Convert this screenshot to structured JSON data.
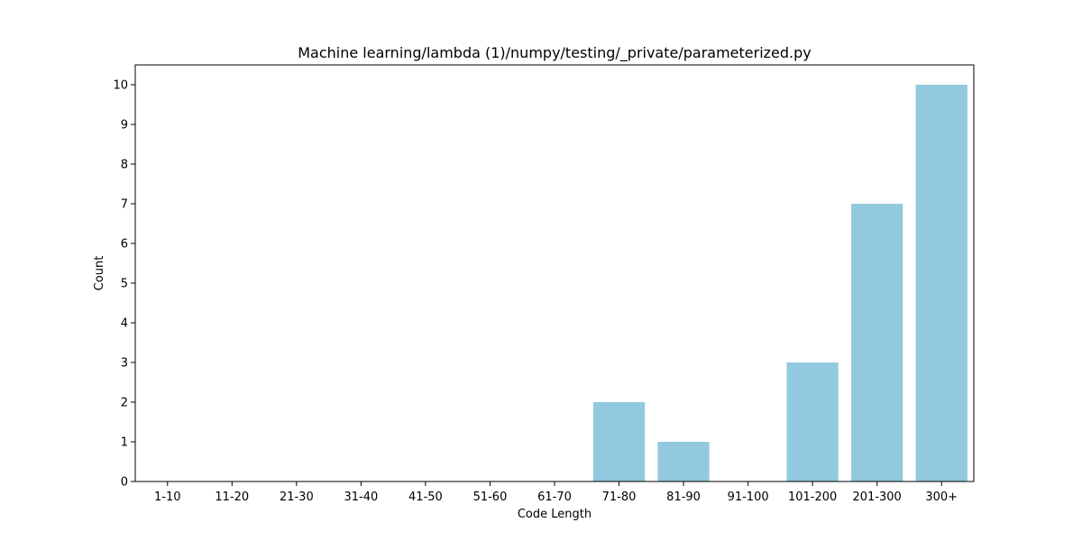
{
  "chart_data": {
    "type": "bar",
    "title": "Machine learning/lambda (1)/numpy/testing/_private/parameterized.py",
    "xlabel": "Code Length",
    "ylabel": "Count",
    "categories": [
      "1-10",
      "11-20",
      "21-30",
      "31-40",
      "41-50",
      "51-60",
      "61-70",
      "71-80",
      "81-90",
      "91-100",
      "101-200",
      "201-300",
      "300+"
    ],
    "values": [
      0,
      0,
      0,
      0,
      0,
      0,
      0,
      2,
      1,
      0,
      3,
      7,
      10
    ],
    "ylim": [
      0,
      10.5
    ],
    "yticks": [
      0,
      1,
      2,
      3,
      4,
      5,
      6,
      7,
      8,
      9,
      10
    ],
    "grid": false,
    "bar_color": "#92c9df"
  }
}
